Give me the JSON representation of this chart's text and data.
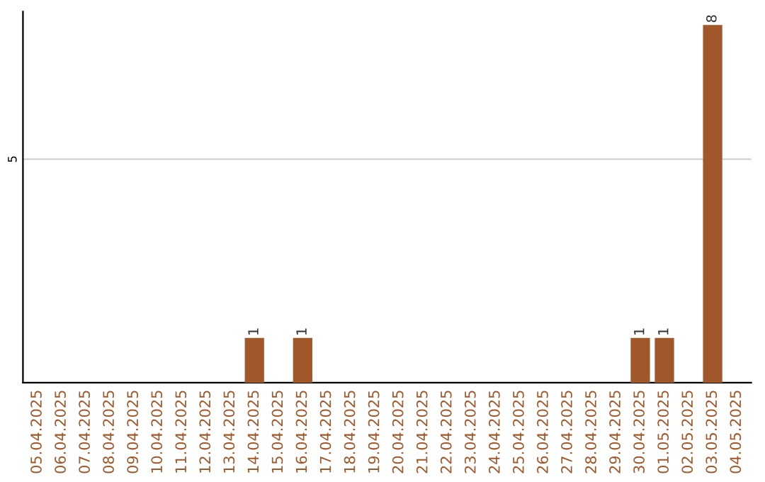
{
  "chart_data": {
    "type": "bar",
    "categories": [
      "05.04.2025",
      "06.04.2025",
      "07.04.2025",
      "08.04.2025",
      "09.04.2025",
      "10.04.2025",
      "11.04.2025",
      "12.04.2025",
      "13.04.2025",
      "14.04.2025",
      "15.04.2025",
      "16.04.2025",
      "17.04.2025",
      "18.04.2025",
      "19.04.2025",
      "20.04.2025",
      "21.04.2025",
      "22.04.2025",
      "23.04.2025",
      "24.04.2025",
      "25.04.2025",
      "26.04.2025",
      "27.04.2025",
      "28.04.2025",
      "29.04.2025",
      "30.04.2025",
      "01.05.2025",
      "02.05.2025",
      "03.05.2025",
      "04.05.2025"
    ],
    "values": [
      0,
      0,
      0,
      0,
      0,
      0,
      0,
      0,
      0,
      1,
      0,
      1,
      0,
      0,
      0,
      0,
      0,
      0,
      0,
      0,
      0,
      0,
      0,
      0,
      0,
      1,
      1,
      0,
      8,
      0
    ],
    "value_labels": [
      null,
      null,
      null,
      null,
      null,
      null,
      null,
      null,
      null,
      "1",
      null,
      "1",
      null,
      null,
      null,
      null,
      null,
      null,
      null,
      null,
      null,
      null,
      null,
      null,
      null,
      "1",
      "1",
      null,
      "8",
      null
    ],
    "color": "#a0582a",
    "ylim": [
      0,
      8.3
    ],
    "yticks": [
      5
    ],
    "grid": "y"
  }
}
